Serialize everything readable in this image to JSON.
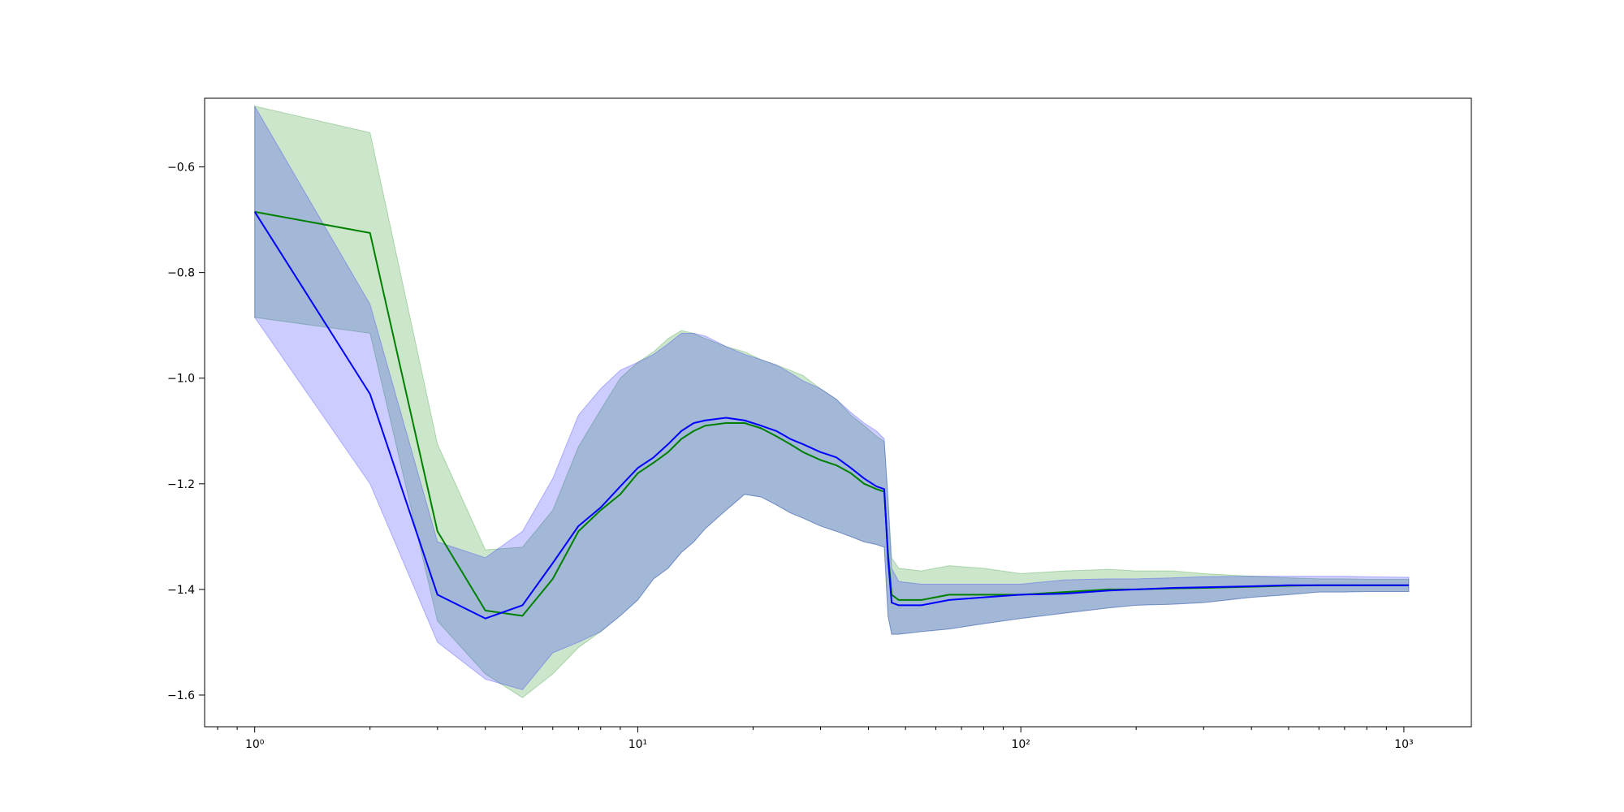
{
  "chart_data": {
    "type": "line",
    "title": "",
    "xlabel": "",
    "ylabel": "",
    "xscale": "log",
    "xlim": [
      0.74,
      1500
    ],
    "ylim": [
      -1.66,
      -0.47
    ],
    "grid": false,
    "legend": null,
    "x_ticks": [
      {
        "value": 1,
        "label": "10⁰"
      },
      {
        "value": 10,
        "label": "10¹"
      },
      {
        "value": 100,
        "label": "10²"
      },
      {
        "value": 1000,
        "label": "10³"
      }
    ],
    "y_ticks": [
      {
        "value": -0.6,
        "label": "−0.6"
      },
      {
        "value": -0.8,
        "label": "−0.8"
      },
      {
        "value": -1.0,
        "label": "−1.0"
      },
      {
        "value": -1.2,
        "label": "−1.2"
      },
      {
        "value": -1.4,
        "label": "−1.4"
      },
      {
        "value": -1.6,
        "label": "−1.6"
      }
    ],
    "series": [
      {
        "line_color": "#008000",
        "band_color": "#008000",
        "band_opacity": 0.2,
        "x": [
          1,
          2,
          3,
          4,
          5,
          6,
          7,
          8,
          9,
          10,
          11,
          12,
          13,
          14,
          15,
          17,
          19,
          21,
          23,
          25,
          27,
          30,
          33,
          36,
          39,
          42,
          44,
          45,
          46,
          48,
          55,
          65,
          80,
          100,
          130,
          170,
          200,
          250,
          300,
          400,
          500,
          600,
          700,
          800,
          1000,
          1030
        ],
        "y": [
          -0.685,
          -0.725,
          -1.29,
          -1.44,
          -1.45,
          -1.38,
          -1.29,
          -1.25,
          -1.22,
          -1.18,
          -1.16,
          -1.14,
          -1.115,
          -1.1,
          -1.09,
          -1.085,
          -1.085,
          -1.095,
          -1.11,
          -1.125,
          -1.14,
          -1.155,
          -1.165,
          -1.18,
          -1.2,
          -1.21,
          -1.215,
          -1.33,
          -1.41,
          -1.42,
          -1.42,
          -1.41,
          -1.41,
          -1.41,
          -1.405,
          -1.4,
          -1.4,
          -1.398,
          -1.397,
          -1.395,
          -1.393,
          -1.392,
          -1.392,
          -1.392,
          -1.392,
          -1.392
        ],
        "upper": [
          -0.485,
          -0.535,
          -1.125,
          -1.325,
          -1.32,
          -1.25,
          -1.13,
          -1.06,
          -1.0,
          -0.97,
          -0.95,
          -0.925,
          -0.91,
          -0.915,
          -0.925,
          -0.94,
          -0.95,
          -0.965,
          -0.975,
          -0.985,
          -0.995,
          -1.02,
          -1.04,
          -1.07,
          -1.09,
          -1.11,
          -1.12,
          -1.225,
          -1.34,
          -1.36,
          -1.365,
          -1.355,
          -1.36,
          -1.37,
          -1.365,
          -1.362,
          -1.365,
          -1.365,
          -1.37,
          -1.375,
          -1.378,
          -1.38,
          -1.38,
          -1.381,
          -1.381,
          -1.381
        ],
        "lower": [
          -0.885,
          -0.915,
          -1.46,
          -1.56,
          -1.605,
          -1.56,
          -1.51,
          -1.48,
          -1.45,
          -1.42,
          -1.38,
          -1.36,
          -1.33,
          -1.31,
          -1.285,
          -1.25,
          -1.22,
          -1.225,
          -1.24,
          -1.255,
          -1.265,
          -1.28,
          -1.29,
          -1.3,
          -1.31,
          -1.315,
          -1.32,
          -1.45,
          -1.485,
          -1.485,
          -1.48,
          -1.475,
          -1.465,
          -1.455,
          -1.445,
          -1.435,
          -1.43,
          -1.428,
          -1.425,
          -1.415,
          -1.41,
          -1.405,
          -1.405,
          -1.404,
          -1.404,
          -1.404
        ]
      },
      {
        "line_color": "#0000ff",
        "band_color": "#0000ff",
        "band_opacity": 0.2,
        "x": [
          1,
          2,
          3,
          4,
          5,
          6,
          7,
          8,
          9,
          10,
          11,
          12,
          13,
          14,
          15,
          17,
          19,
          21,
          23,
          25,
          27,
          30,
          33,
          36,
          39,
          42,
          44,
          45,
          46,
          48,
          55,
          65,
          80,
          100,
          130,
          170,
          200,
          250,
          300,
          400,
          500,
          600,
          700,
          800,
          1000,
          1030
        ],
        "y": [
          -0.685,
          -1.03,
          -1.41,
          -1.455,
          -1.43,
          -1.35,
          -1.28,
          -1.245,
          -1.205,
          -1.17,
          -1.15,
          -1.125,
          -1.1,
          -1.085,
          -1.08,
          -1.075,
          -1.08,
          -1.09,
          -1.1,
          -1.115,
          -1.125,
          -1.14,
          -1.15,
          -1.17,
          -1.19,
          -1.205,
          -1.21,
          -1.34,
          -1.425,
          -1.43,
          -1.43,
          -1.42,
          -1.415,
          -1.41,
          -1.408,
          -1.402,
          -1.4,
          -1.397,
          -1.396,
          -1.394,
          -1.392,
          -1.392,
          -1.392,
          -1.392,
          -1.392,
          -1.392
        ],
        "upper": [
          -0.485,
          -0.86,
          -1.31,
          -1.34,
          -1.29,
          -1.19,
          -1.07,
          -1.02,
          -0.985,
          -0.97,
          -0.955,
          -0.935,
          -0.915,
          -0.915,
          -0.92,
          -0.94,
          -0.955,
          -0.965,
          -0.975,
          -0.99,
          -1.005,
          -1.02,
          -1.04,
          -1.065,
          -1.085,
          -1.1,
          -1.115,
          -1.23,
          -1.36,
          -1.385,
          -1.39,
          -1.39,
          -1.39,
          -1.39,
          -1.382,
          -1.38,
          -1.38,
          -1.378,
          -1.376,
          -1.375,
          -1.375,
          -1.375,
          -1.375,
          -1.376,
          -1.377,
          -1.377
        ],
        "lower": [
          -0.885,
          -1.2,
          -1.5,
          -1.57,
          -1.59,
          -1.52,
          -1.5,
          -1.48,
          -1.45,
          -1.42,
          -1.38,
          -1.36,
          -1.33,
          -1.31,
          -1.285,
          -1.25,
          -1.22,
          -1.225,
          -1.24,
          -1.255,
          -1.265,
          -1.28,
          -1.29,
          -1.3,
          -1.31,
          -1.315,
          -1.32,
          -1.45,
          -1.485,
          -1.485,
          -1.48,
          -1.475,
          -1.465,
          -1.455,
          -1.445,
          -1.435,
          -1.43,
          -1.428,
          -1.425,
          -1.415,
          -1.41,
          -1.405,
          -1.405,
          -1.404,
          -1.404,
          -1.404
        ]
      }
    ]
  }
}
